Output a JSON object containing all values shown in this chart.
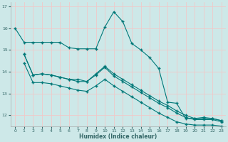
{
  "xlabel": "Humidex (Indice chaleur)",
  "background_color": "#cde8e8",
  "grid_color": "#f0c8c8",
  "line_color": "#007878",
  "ylim": [
    11.5,
    17.2
  ],
  "xlim": [
    -0.5,
    23.5
  ],
  "yticks": [
    12,
    13,
    14,
    15,
    16,
    17
  ],
  "xticks": [
    0,
    1,
    2,
    3,
    4,
    5,
    6,
    7,
    8,
    9,
    10,
    11,
    12,
    13,
    14,
    15,
    16,
    17,
    18,
    19,
    20,
    21,
    22,
    23
  ],
  "series": [
    {
      "x": [
        0,
        1,
        2,
        3,
        4,
        5,
        6,
        7,
        8,
        9,
        10,
        11,
        12,
        13,
        14,
        15,
        16,
        17,
        18,
        19,
        20,
        21,
        22,
        23
      ],
      "y": [
        16.0,
        15.35,
        15.35,
        15.35,
        15.35,
        15.35,
        15.1,
        15.05,
        15.05,
        15.05,
        16.05,
        16.75,
        16.3,
        15.3,
        15.0,
        14.65,
        14.15,
        12.6,
        12.55,
        11.85,
        11.85,
        11.9,
        11.85,
        11.75
      ]
    },
    {
      "x": [
        1,
        2,
        3,
        4,
        5,
        6,
        7,
        8,
        9,
        10,
        11,
        12,
        13,
        14,
        15,
        16,
        17,
        18,
        19,
        20,
        21,
        22,
        23
      ],
      "y": [
        14.8,
        13.85,
        13.9,
        13.85,
        13.75,
        13.65,
        13.65,
        13.55,
        13.9,
        14.25,
        13.9,
        13.65,
        13.4,
        13.15,
        12.9,
        12.65,
        12.45,
        12.2,
        12.0,
        11.85,
        11.85,
        11.85,
        11.75
      ]
    },
    {
      "x": [
        1,
        2,
        3,
        4,
        5,
        6,
        7,
        8,
        9,
        10,
        11,
        12,
        13,
        14,
        15,
        16,
        17,
        18,
        19,
        20,
        21,
        22,
        23
      ],
      "y": [
        14.8,
        13.85,
        13.9,
        13.85,
        13.75,
        13.65,
        13.55,
        13.55,
        13.85,
        14.2,
        13.8,
        13.55,
        13.3,
        13.05,
        12.8,
        12.55,
        12.35,
        12.1,
        11.9,
        11.8,
        11.8,
        11.8,
        11.7
      ]
    },
    {
      "x": [
        1,
        2,
        3,
        4,
        5,
        6,
        7,
        8,
        9,
        10,
        11,
        12,
        13,
        14,
        15,
        16,
        17,
        18,
        19,
        20,
        21,
        22,
        23
      ],
      "y": [
        14.4,
        13.5,
        13.5,
        13.45,
        13.35,
        13.25,
        13.15,
        13.1,
        13.35,
        13.65,
        13.35,
        13.1,
        12.85,
        12.6,
        12.35,
        12.1,
        11.9,
        11.7,
        11.6,
        11.55,
        11.55,
        11.55,
        11.5
      ]
    }
  ]
}
